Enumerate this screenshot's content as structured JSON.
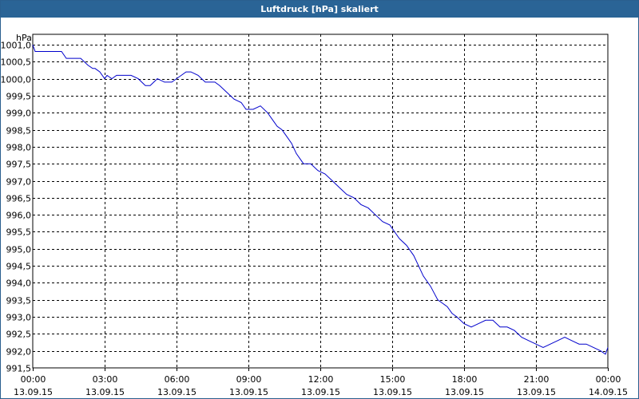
{
  "window": {
    "title": "Luftdruck [hPa] skaliert"
  },
  "chart_data": {
    "type": "line",
    "title": "Luftdruck [hPa] skaliert",
    "ylabel": "hPa",
    "ylim": [
      991.5,
      1001.0
    ],
    "yticks": [
      "1001,0",
      "1000,5",
      "1000,0",
      "999,5",
      "999,0",
      "998,5",
      "998,0",
      "997,5",
      "997,0",
      "996,5",
      "996,0",
      "995,5",
      "995,0",
      "994,5",
      "994,0",
      "993,5",
      "993,0",
      "992,5",
      "992,0",
      "991,5"
    ],
    "yticks_values": [
      1001.0,
      1000.5,
      1000.0,
      999.5,
      999.0,
      998.5,
      998.0,
      997.5,
      997.0,
      996.5,
      996.0,
      995.5,
      995.0,
      994.5,
      994.0,
      993.5,
      993.0,
      992.5,
      992.0,
      991.5
    ],
    "xlim": [
      0,
      24
    ],
    "xticks": [
      {
        "time": "00:00",
        "date": "13.09.15",
        "hour": 0
      },
      {
        "time": "03:00",
        "date": "13.09.15",
        "hour": 3
      },
      {
        "time": "06:00",
        "date": "13.09.15",
        "hour": 6
      },
      {
        "time": "09:00",
        "date": "13.09.15",
        "hour": 9
      },
      {
        "time": "12:00",
        "date": "13.09.15",
        "hour": 12
      },
      {
        "time": "15:00",
        "date": "13.09.15",
        "hour": 15
      },
      {
        "time": "18:00",
        "date": "13.09.15",
        "hour": 18
      },
      {
        "time": "21:00",
        "date": "13.09.15",
        "hour": 21
      },
      {
        "time": "00:00",
        "date": "14.09.15",
        "hour": 24
      }
    ],
    "grid": true,
    "line_color": "#0000cc",
    "series": [
      {
        "x": [
          0,
          0.05,
          0.1,
          0.2,
          1.2,
          1.4,
          1.5,
          2.0,
          2.3,
          2.5,
          2.6,
          2.8,
          3.0,
          3.1,
          3.3,
          3.5,
          3.7,
          3.9,
          4.1,
          4.4,
          4.7,
          4.9,
          5.2,
          5.5,
          5.8,
          6.0,
          6.2,
          6.4,
          6.6,
          6.9,
          7.2,
          7.4,
          7.6,
          7.8,
          8.1,
          8.4,
          8.7,
          8.9,
          9.0,
          9.2,
          9.5,
          9.8,
          10.0,
          10.2,
          10.4,
          10.6,
          10.8,
          11.0,
          11.3,
          11.6,
          11.9,
          12.2,
          12.5,
          12.8,
          13.1,
          13.4,
          13.7,
          14.0,
          14.3,
          14.6,
          14.9,
          15.1,
          15.3,
          15.6,
          15.9,
          16.1,
          16.3,
          16.6,
          16.9,
          17.1,
          17.3,
          17.5,
          17.7,
          18.0,
          18.3,
          18.6,
          18.9,
          19.2,
          19.5,
          19.8,
          20.1,
          20.4,
          20.7,
          21.0,
          21.3,
          21.6,
          21.9,
          22.2,
          22.5,
          22.8,
          23.1,
          23.4,
          23.7,
          23.9,
          24.0
        ],
        "y": [
          1001.0,
          1000.9,
          1000.8,
          1000.8,
          1000.8,
          1000.6,
          1000.6,
          1000.6,
          1000.4,
          1000.3,
          1000.3,
          1000.2,
          1000.0,
          1000.1,
          1000.0,
          1000.1,
          1000.1,
          1000.1,
          1000.1,
          1000.0,
          999.8,
          999.8,
          1000.0,
          999.9,
          999.9,
          1000.0,
          1000.1,
          1000.2,
          1000.2,
          1000.1,
          999.9,
          999.9,
          999.9,
          999.8,
          999.6,
          999.4,
          999.3,
          999.1,
          999.1,
          999.1,
          999.2,
          999.0,
          998.8,
          998.6,
          998.5,
          998.3,
          998.1,
          997.8,
          997.5,
          997.5,
          997.3,
          997.2,
          997.0,
          996.8,
          996.6,
          996.5,
          996.3,
          996.2,
          996.0,
          995.8,
          995.7,
          995.5,
          995.3,
          995.1,
          994.8,
          994.5,
          994.2,
          993.9,
          993.5,
          993.4,
          993.3,
          993.1,
          993.0,
          992.8,
          992.7,
          992.8,
          992.9,
          992.9,
          992.7,
          992.7,
          992.6,
          992.4,
          992.3,
          992.2,
          992.1,
          992.2,
          992.3,
          992.4,
          992.3,
          992.2,
          992.2,
          992.1,
          992.0,
          991.9,
          992.1
        ]
      }
    ]
  }
}
